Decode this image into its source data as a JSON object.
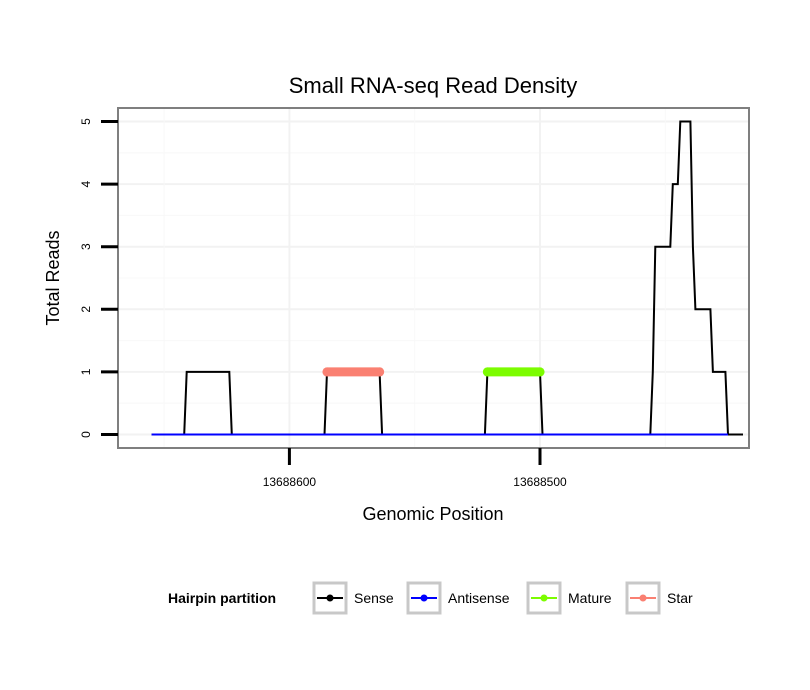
{
  "chart_data": {
    "type": "line",
    "title": "Small RNA-seq Read Density",
    "xlabel": "Genomic Position",
    "ylabel": "Total Reads",
    "x_reversed": true,
    "xlim": [
      13688668,
      13688417
    ],
    "ylim": [
      -0.2,
      5.2
    ],
    "x_ticks": [
      13688600,
      13688500
    ],
    "x_tick_labels": [
      "13688600",
      "13688500"
    ],
    "y_ticks": [
      0,
      1,
      2,
      3,
      4,
      5
    ],
    "y_tick_labels": [
      "0",
      "1",
      "2",
      "3",
      "4",
      "5"
    ],
    "grid": true,
    "legend": {
      "title": "Hairpin partition",
      "position": "bottom",
      "entries": [
        {
          "name": "Sense",
          "color": "#000000"
        },
        {
          "name": "Antisense",
          "color": "#0000ff"
        },
        {
          "name": "Mature",
          "color": "#7cfc00"
        },
        {
          "name": "Star",
          "color": "#fa8072"
        }
      ]
    },
    "series": [
      {
        "name": "Sense",
        "color": "#000000",
        "points": [
          [
            13688655,
            0
          ],
          [
            13688642,
            0
          ],
          [
            13688641,
            1
          ],
          [
            13688624,
            1
          ],
          [
            13688623,
            0
          ],
          [
            13688586,
            0
          ],
          [
            13688585,
            1
          ],
          [
            13688564,
            1
          ],
          [
            13688563,
            0
          ],
          [
            13688522,
            0
          ],
          [
            13688521,
            1
          ],
          [
            13688500,
            1
          ],
          [
            13688499,
            0
          ],
          [
            13688456,
            0
          ],
          [
            13688455,
            1
          ],
          [
            13688454,
            3
          ],
          [
            13688448,
            3
          ],
          [
            13688447,
            4
          ],
          [
            13688445,
            4
          ],
          [
            13688444,
            5
          ],
          [
            13688440,
            5
          ],
          [
            13688439,
            3
          ],
          [
            13688438,
            2
          ],
          [
            13688432,
            2
          ],
          [
            13688431,
            1
          ],
          [
            13688426,
            1
          ],
          [
            13688425,
            0
          ],
          [
            13688419,
            0
          ]
        ]
      },
      {
        "name": "Antisense",
        "color": "#0000ff",
        "points": [
          [
            13688655,
            0
          ],
          [
            13688425,
            0
          ]
        ]
      },
      {
        "name": "Mature",
        "color": "#7cfc00",
        "points": [
          [
            13688521,
            1
          ],
          [
            13688500,
            1
          ]
        ]
      },
      {
        "name": "Star",
        "color": "#fa8072",
        "points": [
          [
            13688585,
            1
          ],
          [
            13688564,
            1
          ]
        ]
      }
    ]
  }
}
